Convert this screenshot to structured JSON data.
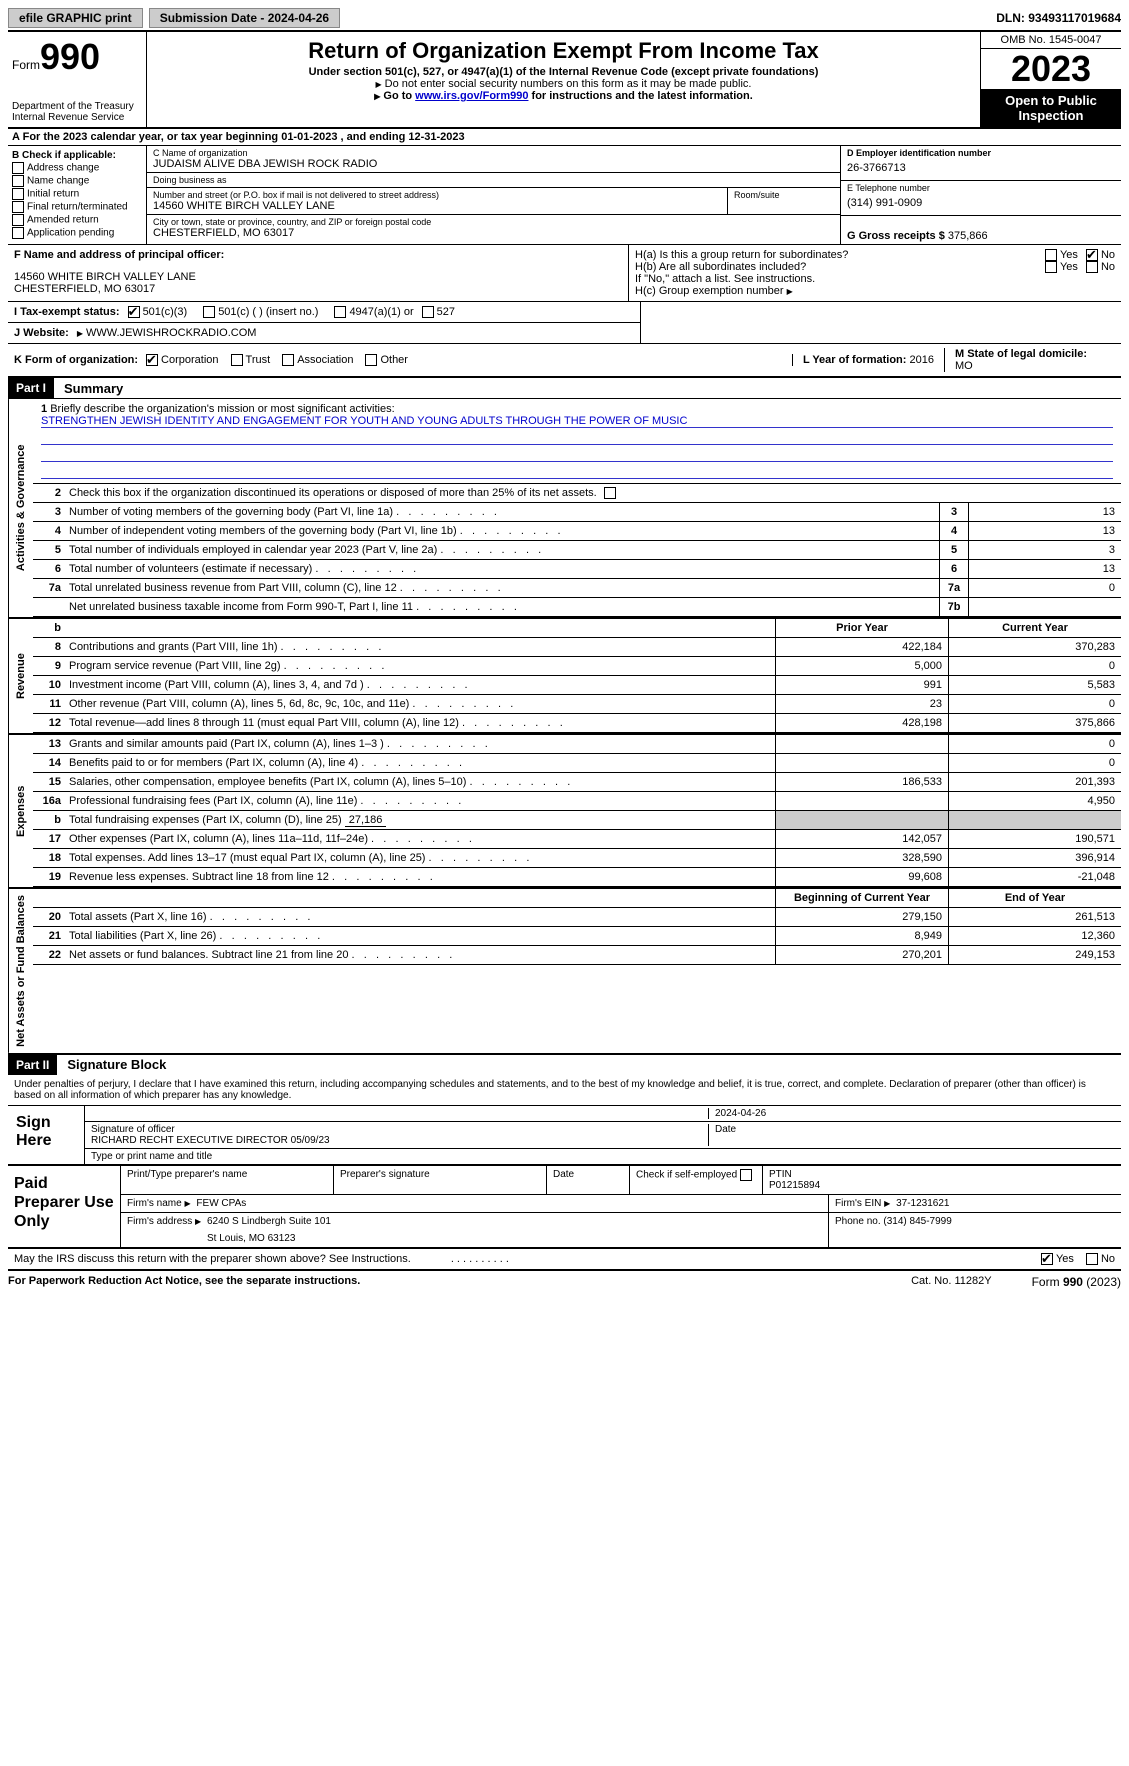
{
  "topbar": {
    "efile": "efile GRAPHIC print",
    "submission": "Submission Date - 2024-04-26",
    "dln": "DLN: 93493117019684"
  },
  "header": {
    "form_prefix": "Form",
    "form_number": "990",
    "dept": "Department of the Treasury",
    "irs": "Internal Revenue Service",
    "title": "Return of Organization Exempt From Income Tax",
    "sub1": "Under section 501(c), 527, or 4947(a)(1) of the Internal Revenue Code (except private foundations)",
    "sub2": "Do not enter social security numbers on this form as it may be made public.",
    "sub3_pre": "Go to ",
    "sub3_link": "www.irs.gov/Form990",
    "sub3_post": " for instructions and the latest information.",
    "omb": "OMB No. 1545-0047",
    "year": "2023",
    "open": "Open to Public Inspection"
  },
  "row_a": "For the 2023 calendar year, or tax year beginning 01-01-2023   , and ending 12-31-2023",
  "sec_b": {
    "title": "B Check if applicable:",
    "items": [
      "Address change",
      "Name change",
      "Initial return",
      "Final return/terminated",
      "Amended return",
      "Application pending"
    ]
  },
  "sec_c": {
    "name_label": "C Name of organization",
    "name": "JUDAISM ALIVE DBA JEWISH ROCK RADIO",
    "dba_label": "Doing business as",
    "dba": "",
    "street_label": "Number and street (or P.O. box if mail is not delivered to street address)",
    "street": "14560 WHITE BIRCH VALLEY LANE",
    "room_label": "Room/suite",
    "city_label": "City or town, state or province, country, and ZIP or foreign postal code",
    "city": "CHESTERFIELD, MO  63017"
  },
  "sec_d": {
    "label": "D Employer identification number",
    "value": "26-3766713"
  },
  "sec_e": {
    "label": "E Telephone number",
    "value": "(314) 991-0909"
  },
  "sec_g": {
    "label": "G Gross receipts $",
    "value": "375,866"
  },
  "sec_f": {
    "label": "F  Name and address of principal officer:",
    "line1": "14560 WHITE BIRCH VALLEY LANE",
    "line2": "CHESTERFIELD, MO  63017"
  },
  "sec_h": {
    "a_label": "H(a)  Is this a group return for subordinates?",
    "b_label": "H(b)  Are all subordinates included?",
    "b_note": "If \"No,\" attach a list. See instructions.",
    "c_label": "H(c)  Group exemption number",
    "yes": "Yes",
    "no": "No"
  },
  "sec_i": {
    "label": "I  Tax-exempt status:",
    "opts": [
      "501(c)(3)",
      "501(c) (  ) (insert no.)",
      "4947(a)(1) or",
      "527"
    ]
  },
  "sec_j": {
    "label": "J  Website:",
    "value": "WWW.JEWISHROCKRADIO.COM"
  },
  "sec_k": {
    "label": "K Form of organization:",
    "opts": [
      "Corporation",
      "Trust",
      "Association",
      "Other"
    ]
  },
  "sec_l": {
    "label": "L Year of formation:",
    "value": "2016"
  },
  "sec_m": {
    "label": "M State of legal domicile:",
    "value": "MO"
  },
  "part1": {
    "header": "Part I",
    "title": "Summary"
  },
  "vtabs": {
    "gov": "Activities & Governance",
    "rev": "Revenue",
    "exp": "Expenses",
    "net": "Net Assets or Fund Balances"
  },
  "l1": {
    "label": "Briefly describe the organization's mission or most significant activities:",
    "mission": "STRENGTHEN JEWISH IDENTITY AND ENGAGEMENT FOR YOUTH AND YOUNG ADULTS THROUGH THE POWER OF MUSIC"
  },
  "l2": "Check this box      if the organization discontinued its operations or disposed of more than 25% of its net assets.",
  "lines_gov": [
    {
      "n": "3",
      "t": "Number of voting members of the governing body (Part VI, line 1a)",
      "box": "3",
      "v": "13"
    },
    {
      "n": "4",
      "t": "Number of independent voting members of the governing body (Part VI, line 1b)",
      "box": "4",
      "v": "13"
    },
    {
      "n": "5",
      "t": "Total number of individuals employed in calendar year 2023 (Part V, line 2a)",
      "box": "5",
      "v": "3"
    },
    {
      "n": "6",
      "t": "Total number of volunteers (estimate if necessary)",
      "box": "6",
      "v": "13"
    },
    {
      "n": "7a",
      "t": "Total unrelated business revenue from Part VIII, column (C), line 12",
      "box": "7a",
      "v": "0"
    },
    {
      "n": "",
      "t": "Net unrelated business taxable income from Form 990-T, Part I, line 11",
      "box": "7b",
      "v": ""
    }
  ],
  "col_headers": {
    "prior": "Prior Year",
    "current": "Current Year"
  },
  "lines_rev": [
    {
      "n": "8",
      "t": "Contributions and grants (Part VIII, line 1h)",
      "c1": "422,184",
      "c2": "370,283"
    },
    {
      "n": "9",
      "t": "Program service revenue (Part VIII, line 2g)",
      "c1": "5,000",
      "c2": "0"
    },
    {
      "n": "10",
      "t": "Investment income (Part VIII, column (A), lines 3, 4, and 7d )",
      "c1": "991",
      "c2": "5,583"
    },
    {
      "n": "11",
      "t": "Other revenue (Part VIII, column (A), lines 5, 6d, 8c, 9c, 10c, and 11e)",
      "c1": "23",
      "c2": "0"
    },
    {
      "n": "12",
      "t": "Total revenue—add lines 8 through 11 (must equal Part VIII, column (A), line 12)",
      "c1": "428,198",
      "c2": "375,866"
    }
  ],
  "lines_exp": [
    {
      "n": "13",
      "t": "Grants and similar amounts paid (Part IX, column (A), lines 1–3 )",
      "c1": "",
      "c2": "0"
    },
    {
      "n": "14",
      "t": "Benefits paid to or for members (Part IX, column (A), line 4)",
      "c1": "",
      "c2": "0"
    },
    {
      "n": "15",
      "t": "Salaries, other compensation, employee benefits (Part IX, column (A), lines 5–10)",
      "c1": "186,533",
      "c2": "201,393"
    },
    {
      "n": "16a",
      "t": "Professional fundraising fees (Part IX, column (A), line 11e)",
      "c1": "",
      "c2": "4,950"
    }
  ],
  "l16b": {
    "n": "b",
    "t": "Total fundraising expenses (Part IX, column (D), line 25)",
    "v": "27,186"
  },
  "lines_exp2": [
    {
      "n": "17",
      "t": "Other expenses (Part IX, column (A), lines 11a–11d, 11f–24e)",
      "c1": "142,057",
      "c2": "190,571"
    },
    {
      "n": "18",
      "t": "Total expenses. Add lines 13–17 (must equal Part IX, column (A), line 25)",
      "c1": "328,590",
      "c2": "396,914"
    },
    {
      "n": "19",
      "t": "Revenue less expenses. Subtract line 18 from line 12",
      "c1": "99,608",
      "c2": "-21,048"
    }
  ],
  "col_headers2": {
    "begin": "Beginning of Current Year",
    "end": "End of Year"
  },
  "lines_net": [
    {
      "n": "20",
      "t": "Total assets (Part X, line 16)",
      "c1": "279,150",
      "c2": "261,513"
    },
    {
      "n": "21",
      "t": "Total liabilities (Part X, line 26)",
      "c1": "8,949",
      "c2": "12,360"
    },
    {
      "n": "22",
      "t": "Net assets or fund balances. Subtract line 21 from line 20",
      "c1": "270,201",
      "c2": "249,153"
    }
  ],
  "part2": {
    "header": "Part II",
    "title": "Signature Block"
  },
  "sig": {
    "perjury": "Under penalties of perjury, I declare that I have examined this return, including accompanying schedules and statements, and to the best of my knowledge and belief, it is true, correct, and complete. Declaration of preparer (other than officer) is based on all information of which preparer has any knowledge.",
    "sign_here": "Sign Here",
    "date": "2024-04-26",
    "sig_officer_label": "Signature of officer",
    "officer": "RICHARD RECHT EXECUTIVE DIRECTOR 05/09/23",
    "type_name_label": "Type or print name and title",
    "date_label": "Date"
  },
  "prep": {
    "label": "Paid Preparer Use Only",
    "print_name_label": "Print/Type preparer's name",
    "prep_sig_label": "Preparer's signature",
    "date_label": "Date",
    "check_label": "Check        if self-employed",
    "ptin_label": "PTIN",
    "ptin": "P01215894",
    "firm_name_label": "Firm's name",
    "firm_name": "FEW CPAs",
    "firm_ein_label": "Firm's EIN",
    "firm_ein": "37-1231621",
    "firm_addr_label": "Firm's address",
    "firm_addr1": "6240 S Lindbergh Suite 101",
    "firm_addr2": "St Louis, MO  63123",
    "phone_label": "Phone no.",
    "phone": "(314) 845-7999"
  },
  "discuss": {
    "text": "May the IRS discuss this return with the preparer shown above? See Instructions.",
    "yes": "Yes",
    "no": "No"
  },
  "footer": {
    "left": "For Paperwork Reduction Act Notice, see the separate instructions.",
    "center": "Cat. No. 11282Y",
    "right_text": "Form ",
    "right_form": "990",
    "right_year": " (2023)"
  }
}
